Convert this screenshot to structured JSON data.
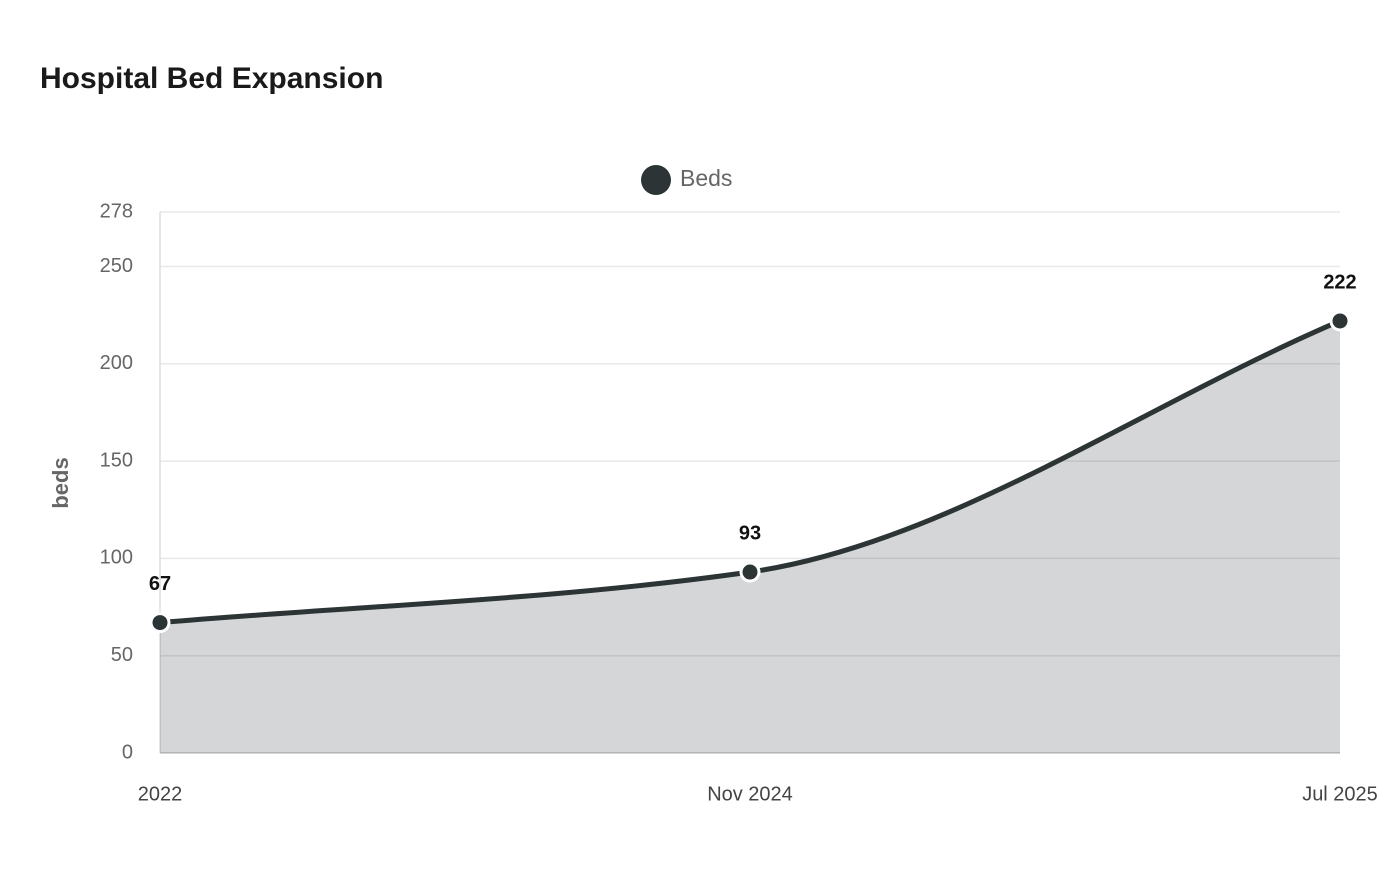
{
  "chart_data": {
    "type": "area",
    "title": "Hospital Bed Expansion",
    "y_label": "beds",
    "categories": [
      "2022",
      "Nov 2024",
      "Jul 2025"
    ],
    "series": [
      {
        "name": "Beds",
        "color": "#2d3436",
        "values": [
          67,
          93,
          222
        ]
      }
    ],
    "ylim": [
      0,
      278
    ],
    "yticks": [
      0,
      50,
      100,
      150,
      200,
      250,
      278
    ],
    "grid": true,
    "legend": "top"
  }
}
